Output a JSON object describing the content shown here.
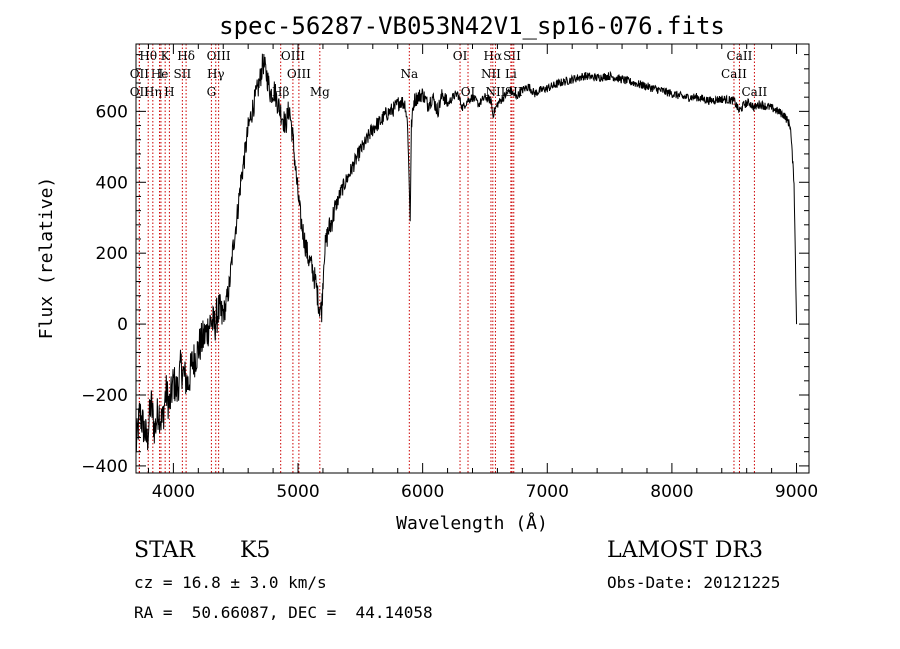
{
  "chart_data": {
    "type": "line",
    "title": "spec-56287-VB053N42V1_sp16-076.fits",
    "xlabel": "Wavelength (Å)",
    "ylabel": "Flux (relative)",
    "xlim": [
      3700,
      9100
    ],
    "ylim": [
      -420,
      790
    ],
    "x_ticks": [
      4000,
      5000,
      6000,
      7000,
      8000,
      9000
    ],
    "y_ticks": [
      -400,
      -200,
      0,
      200,
      400,
      600
    ],
    "x_tick_labels": [
      "4000",
      "5000",
      "6000",
      "7000",
      "8000",
      "9000"
    ],
    "y_tick_labels": [
      "−400",
      "−200",
      "0",
      "200",
      "400",
      "600"
    ],
    "grid": false,
    "series": [
      {
        "name": "spectrum",
        "x": [
          3700,
          3730,
          3760,
          3790,
          3820,
          3850,
          3880,
          3910,
          3940,
          3970,
          4000,
          4030,
          4060,
          4090,
          4120,
          4150,
          4180,
          4210,
          4240,
          4270,
          4300,
          4330,
          4360,
          4390,
          4420,
          4450,
          4480,
          4510,
          4540,
          4570,
          4600,
          4630,
          4660,
          4690,
          4720,
          4750,
          4780,
          4810,
          4840,
          4870,
          4900,
          4930,
          4960,
          4990,
          5020,
          5050,
          5080,
          5110,
          5140,
          5170,
          5190,
          5210,
          5240,
          5270,
          5300,
          5340,
          5380,
          5420,
          5460,
          5500,
          5540,
          5580,
          5620,
          5660,
          5700,
          5740,
          5780,
          5820,
          5860,
          5880,
          5890,
          5900,
          5910,
          5930,
          5960,
          6000,
          6040,
          6080,
          6120,
          6160,
          6200,
          6240,
          6280,
          6320,
          6360,
          6400,
          6450,
          6500,
          6550,
          6563,
          6600,
          6650,
          6700,
          6750,
          6800,
          6850,
          6900,
          6950,
          7000,
          7100,
          7200,
          7300,
          7400,
          7500,
          7600,
          7700,
          7800,
          7900,
          8000,
          8100,
          8200,
          8300,
          8400,
          8500,
          8540,
          8580,
          8620,
          8660,
          8700,
          8750,
          8800,
          8850,
          8900,
          8950,
          8980,
          9000
        ],
        "y": [
          -350,
          -250,
          -290,
          -330,
          -220,
          -300,
          -240,
          -280,
          -190,
          -230,
          -160,
          -190,
          -120,
          -150,
          -170,
          -110,
          -90,
          -60,
          -40,
          -20,
          10,
          -5,
          40,
          20,
          50,
          110,
          220,
          300,
          400,
          470,
          550,
          600,
          640,
          680,
          740,
          700,
          650,
          660,
          620,
          590,
          560,
          610,
          520,
          400,
          300,
          240,
          190,
          160,
          120,
          50,
          40,
          200,
          260,
          290,
          330,
          370,
          400,
          430,
          460,
          490,
          510,
          540,
          560,
          570,
          590,
          600,
          610,
          630,
          620,
          560,
          420,
          300,
          560,
          630,
          640,
          650,
          620,
          640,
          600,
          650,
          620,
          640,
          650,
          610,
          630,
          640,
          620,
          640,
          630,
          590,
          620,
          640,
          660,
          640,
          660,
          670,
          650,
          660,
          665,
          680,
          690,
          700,
          695,
          700,
          690,
          680,
          670,
          660,
          650,
          640,
          640,
          630,
          635,
          630,
          600,
          620,
          625,
          610,
          620,
          615,
          610,
          600,
          590,
          560,
          400,
          0
        ]
      }
    ],
    "line_markers": [
      {
        "name": "Hθ",
        "wavelength": 3798,
        "label_row": 1
      },
      {
        "name": "OII",
        "wavelength": 3727,
        "label_row": 2
      },
      {
        "name": "OII",
        "wavelength": 3727,
        "label_row": 3
      },
      {
        "name": "He",
        "wavelength": 3889,
        "label_row": 2
      },
      {
        "name": "Hη",
        "wavelength": 3835,
        "label_row": 3
      },
      {
        "name": "K",
        "wavelength": 3934,
        "label_row": 1
      },
      {
        "name": "I",
        "wavelength": 3900,
        "label_row": 2
      },
      {
        "name": "H",
        "wavelength": 3968,
        "label_row": 3
      },
      {
        "name": "SII",
        "wavelength": 4072,
        "label_row": 2
      },
      {
        "name": "Hδ",
        "wavelength": 4102,
        "label_row": 1
      },
      {
        "name": "OIII",
        "wavelength": 4363,
        "label_row": 1
      },
      {
        "name": "Hγ",
        "wavelength": 4340,
        "label_row": 2
      },
      {
        "name": "G",
        "wavelength": 4305,
        "label_row": 3
      },
      {
        "name": "Hβ",
        "wavelength": 4861,
        "label_row": 3
      },
      {
        "name": "OIII",
        "wavelength": 4959,
        "label_row": 1
      },
      {
        "name": "OIII",
        "wavelength": 5007,
        "label_row": 2
      },
      {
        "name": "Mg",
        "wavelength": 5175,
        "label_row": 3
      },
      {
        "name": "Na",
        "wavelength": 5893,
        "label_row": 2
      },
      {
        "name": "OI",
        "wavelength": 6300,
        "label_row": 1
      },
      {
        "name": "OI",
        "wavelength": 6364,
        "label_row": 3
      },
      {
        "name": "Hα",
        "wavelength": 6563,
        "label_row": 1
      },
      {
        "name": "SII",
        "wavelength": 6717,
        "label_row": 1
      },
      {
        "name": "NII",
        "wavelength": 6548,
        "label_row": 2
      },
      {
        "name": "Li",
        "wavelength": 6708,
        "label_row": 2
      },
      {
        "name": "NII",
        "wavelength": 6584,
        "label_row": 3
      },
      {
        "name": "SII",
        "wavelength": 6731,
        "label_row": 3
      },
      {
        "name": "CaII",
        "wavelength": 8542,
        "label_row": 1
      },
      {
        "name": "CaII",
        "wavelength": 8498,
        "label_row": 2
      },
      {
        "name": "CaII",
        "wavelength": 8662,
        "label_row": 3
      }
    ],
    "marker_color": "#cc0000",
    "line_color": "#000000"
  },
  "info": {
    "object_class": "STAR",
    "subclass": "K5",
    "survey": "LAMOST DR3",
    "redshift": "cz = 16.8 ± 3.0 km/s",
    "obs_date": "Obs-Date: 20121225",
    "coords": "RA =  50.66087, DEC =  44.14058"
  }
}
